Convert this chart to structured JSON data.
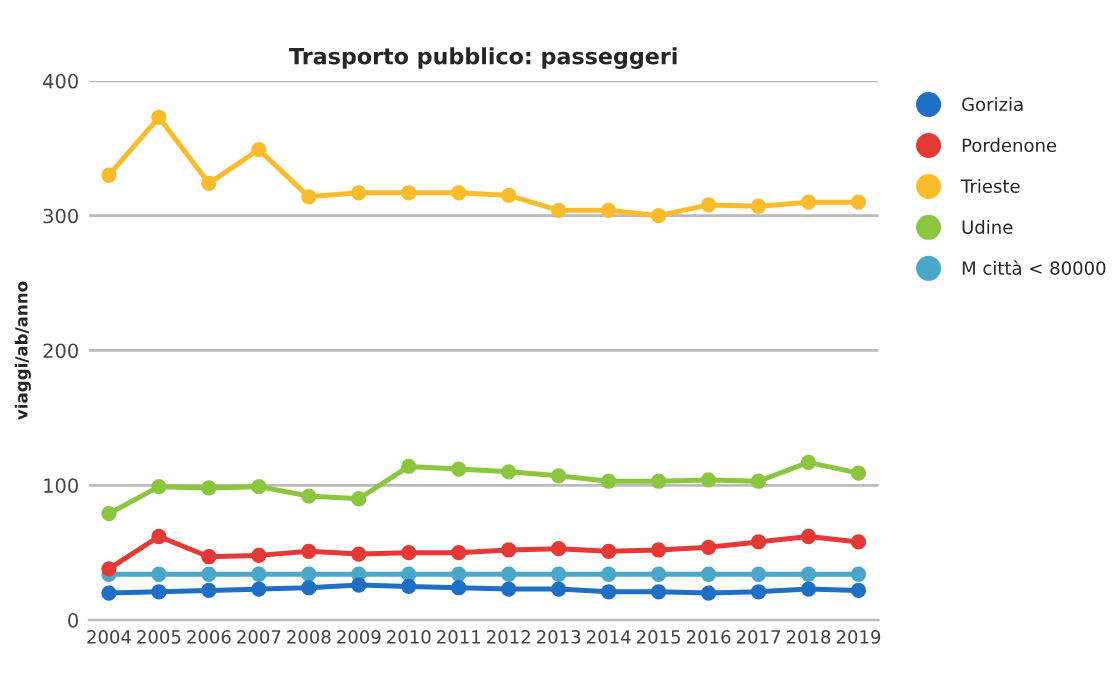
{
  "chart_data": {
    "type": "line",
    "title": "Trasporto pubblico: passeggeri",
    "ylabel": "viaggi/ab/anno",
    "categories": [
      "2004",
      "2005",
      "2006",
      "2007",
      "2008",
      "2009",
      "2010",
      "2011",
      "2012",
      "2013",
      "2014",
      "2015",
      "2016",
      "2017",
      "2018",
      "2019"
    ],
    "series": [
      {
        "name": "Gorizia",
        "color": "#1f6fc5",
        "values": [
          20,
          21,
          22,
          23,
          24,
          26,
          25,
          24,
          23,
          23,
          21,
          21,
          20,
          21,
          23,
          22
        ]
      },
      {
        "name": "Pordenone",
        "color": "#e53935",
        "values": [
          38,
          62,
          47,
          48,
          51,
          49,
          50,
          50,
          52,
          53,
          51,
          52,
          54,
          58,
          62,
          58
        ]
      },
      {
        "name": "Trieste",
        "color": "#fbbc2c",
        "values": [
          330,
          373,
          324,
          349,
          314,
          317,
          317,
          317,
          315,
          304,
          304,
          300,
          308,
          307,
          310,
          310
        ]
      },
      {
        "name": "Udine",
        "color": "#8cc63f",
        "values": [
          79,
          99,
          98,
          99,
          92,
          90,
          114,
          112,
          110,
          107,
          103,
          103,
          104,
          103,
          117,
          109
        ]
      },
      {
        "name": "M città < 80000",
        "color": "#4ba7c9",
        "values": [
          34,
          34,
          34,
          34,
          34,
          34,
          34,
          34,
          34,
          34,
          34,
          34,
          34,
          34,
          34,
          34
        ]
      }
    ],
    "ylim": [
      0,
      400
    ],
    "yticks": [
      0,
      100,
      200,
      300,
      400
    ],
    "grid": "y",
    "legend": "right",
    "marker": "circle",
    "line_style": "solid"
  }
}
